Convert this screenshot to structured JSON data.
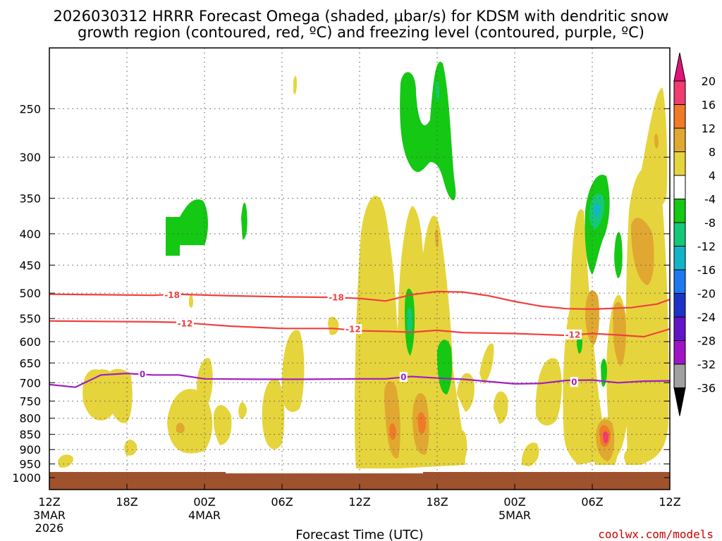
{
  "chart_data": {
    "type": "contour",
    "title_line1": "2026030312 HRRR Forecast Omega (shaded, μbar/s) for KDSM with dendritic snow",
    "title_line2": "growth region (contoured, red, ºC) and freezing level (contoured, purple, ºC)",
    "xlabel": "Forecast Time (UTC)",
    "credit": "coolwx.com/models",
    "y_axis": {
      "scale": "log-pressure",
      "range": [
        1000,
        200
      ],
      "ticks": [
        250,
        300,
        350,
        400,
        450,
        500,
        550,
        600,
        650,
        700,
        750,
        800,
        850,
        900,
        950,
        1000
      ]
    },
    "x_axis": {
      "range_hours": [
        0,
        48
      ],
      "ticks": [
        {
          "h": 0,
          "label": "12Z",
          "sub1": "3MAR",
          "sub2": "2026"
        },
        {
          "h": 6,
          "label": "18Z",
          "sub1": "",
          "sub2": ""
        },
        {
          "h": 12,
          "label": "00Z",
          "sub1": "4MAR",
          "sub2": ""
        },
        {
          "h": 18,
          "label": "06Z",
          "sub1": "",
          "sub2": ""
        },
        {
          "h": 24,
          "label": "12Z",
          "sub1": "",
          "sub2": ""
        },
        {
          "h": 30,
          "label": "18Z",
          "sub1": "",
          "sub2": ""
        },
        {
          "h": 36,
          "label": "00Z",
          "sub1": "5MAR",
          "sub2": ""
        },
        {
          "h": 42,
          "label": "06Z",
          "sub1": "",
          "sub2": ""
        },
        {
          "h": 48,
          "label": "12Z",
          "sub1": "",
          "sub2": ""
        }
      ]
    },
    "colorbar": {
      "labels": [
        "20",
        "16",
        "12",
        "8",
        "4",
        "-4",
        "-8",
        "-12",
        "-16",
        "-20",
        "-24",
        "-28",
        "-32",
        "-36"
      ],
      "colors": [
        "#f03c6e",
        "#f07a28",
        "#e0a830",
        "#e6d43c",
        "#ffffff",
        "#14c814",
        "#14c878",
        "#14b4c8",
        "#1e78f0",
        "#1e32c8",
        "#6414c8",
        "#a014c8",
        "#a0a0a0"
      ],
      "top_arrow_color": "#e0147a",
      "bottom_arrow_color": "#000000"
    },
    "contours": [
      {
        "name": "-18",
        "color": "#f04040",
        "points": [
          [
            0,
            502
          ],
          [
            4,
            503
          ],
          [
            8,
            504
          ],
          [
            10,
            502
          ],
          [
            14,
            505
          ],
          [
            18,
            507
          ],
          [
            22,
            508
          ],
          [
            24,
            510
          ],
          [
            26,
            515
          ],
          [
            28,
            503
          ],
          [
            30,
            497
          ],
          [
            32,
            498
          ],
          [
            34,
            505
          ],
          [
            36,
            516
          ],
          [
            38,
            525
          ],
          [
            40,
            530
          ],
          [
            42,
            531
          ],
          [
            45,
            528
          ],
          [
            47,
            521
          ],
          [
            48,
            512
          ]
        ],
        "labels": [
          {
            "h": 9.5,
            "p": 503
          },
          {
            "h": 22.2,
            "p": 508
          }
        ]
      },
      {
        "name": "-12",
        "color": "#f04040",
        "points": [
          [
            0,
            555
          ],
          [
            4,
            556
          ],
          [
            8,
            557
          ],
          [
            10,
            558
          ],
          [
            12,
            562
          ],
          [
            14,
            566
          ],
          [
            18,
            571
          ],
          [
            22,
            571
          ],
          [
            24,
            576
          ],
          [
            26,
            577
          ],
          [
            28,
            579
          ],
          [
            30,
            575
          ],
          [
            32,
            580
          ],
          [
            36,
            582
          ],
          [
            38,
            584
          ],
          [
            40,
            586
          ],
          [
            42,
            582
          ],
          [
            44,
            585
          ],
          [
            46,
            589
          ],
          [
            48,
            572
          ]
        ],
        "labels": [
          {
            "h": 10.5,
            "p": 560
          },
          {
            "h": 23.5,
            "p": 572
          },
          {
            "h": 40.5,
            "p": 584
          }
        ]
      },
      {
        "name": "0",
        "color": "#a020c0",
        "points": [
          [
            0,
            705
          ],
          [
            2,
            712
          ],
          [
            4,
            680
          ],
          [
            6,
            676
          ],
          [
            8,
            680
          ],
          [
            10,
            680
          ],
          [
            12,
            690
          ],
          [
            16,
            691
          ],
          [
            20,
            691
          ],
          [
            24,
            690
          ],
          [
            26,
            690
          ],
          [
            28,
            684
          ],
          [
            30,
            688
          ],
          [
            32,
            691
          ],
          [
            36,
            703
          ],
          [
            38,
            702
          ],
          [
            40,
            694
          ],
          [
            42,
            693
          ],
          [
            44,
            700
          ],
          [
            46,
            696
          ],
          [
            48,
            695
          ]
        ],
        "labels": [
          {
            "h": 7.2,
            "p": 678
          },
          {
            "h": 27.4,
            "p": 685
          },
          {
            "h": 40.6,
            "p": 698
          }
        ]
      }
    ]
  }
}
